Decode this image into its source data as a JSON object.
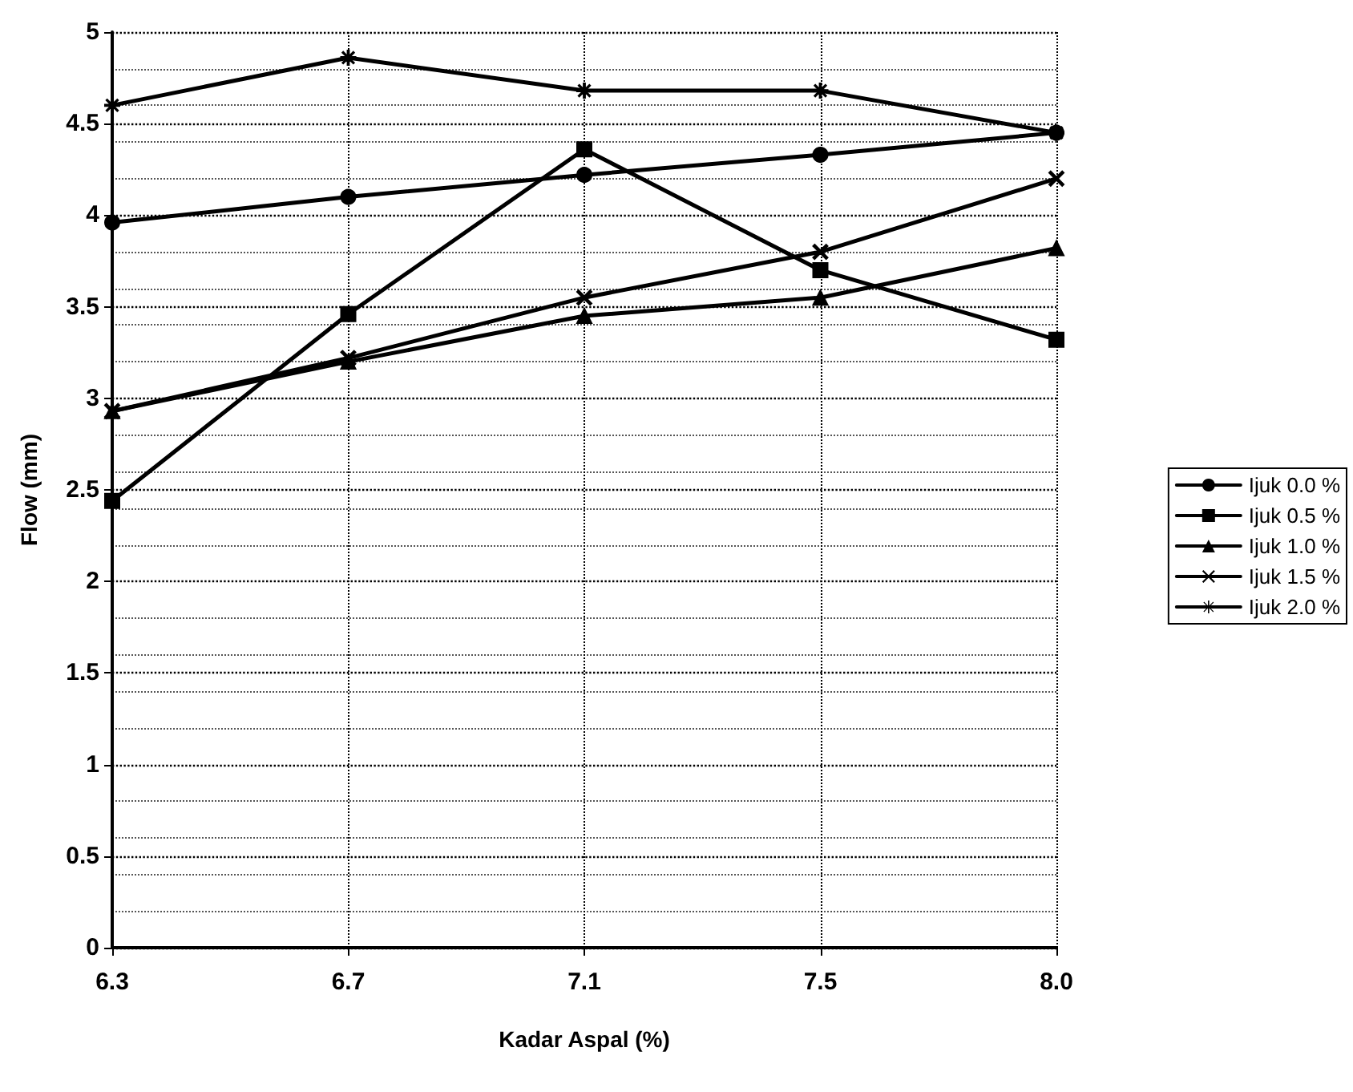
{
  "chart_data": {
    "type": "line",
    "xlabel": "Kadar Aspal (%)",
    "ylabel": "Flow (mm)",
    "categories": [
      "6.3",
      "6.7",
      "7.1",
      "7.5",
      "8.0"
    ],
    "ylim": [
      0,
      5
    ],
    "yticks": [
      0,
      0.5,
      1,
      1.5,
      2,
      2.5,
      3,
      3.5,
      4,
      4.5,
      5
    ],
    "grid": true,
    "legend": "right",
    "line_style": "solid",
    "series": [
      {
        "name": "Ijuk 0.0 %",
        "color": "#000000",
        "marker": "circle",
        "values": [
          3.96,
          4.1,
          4.22,
          4.33,
          4.45
        ]
      },
      {
        "name": "Ijuk 0.5 %",
        "color": "#000000",
        "marker": "square",
        "values": [
          2.44,
          3.46,
          4.36,
          3.7,
          3.32
        ]
      },
      {
        "name": "Ijuk 1.0 %",
        "color": "#000000",
        "marker": "triangle",
        "values": [
          2.93,
          3.2,
          3.45,
          3.55,
          3.82
        ]
      },
      {
        "name": "Ijuk 1.5 %",
        "color": "#000000",
        "marker": "cross",
        "values": [
          2.93,
          3.22,
          3.55,
          3.8,
          4.2
        ]
      },
      {
        "name": "Ijuk 2.0 %",
        "color": "#000000",
        "marker": "star",
        "values": [
          4.6,
          4.86,
          4.68,
          4.68,
          4.45
        ]
      }
    ]
  }
}
